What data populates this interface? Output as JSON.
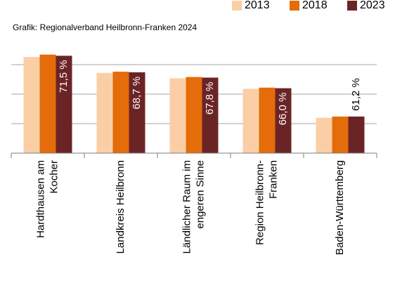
{
  "chart_data": {
    "type": "bar",
    "subtitle": "Grafik: Regionalverband Heilbronn-Franken 2024",
    "categories": [
      [
        "Hardthausen am",
        "Kocher"
      ],
      [
        "Landkreis Heilbronn"
      ],
      [
        "Ländlicher Raum im",
        "engeren Sinne"
      ],
      [
        "Region Heilbronn-",
        "Franken"
      ],
      [
        "Baden-Württemberg"
      ]
    ],
    "series": [
      {
        "name": "2013",
        "color": "#fbcfa6",
        "values": [
          71.3,
          68.6,
          67.7,
          65.9,
          61.0
        ]
      },
      {
        "name": "2018",
        "color": "#e46c0a",
        "values": [
          71.7,
          68.8,
          67.9,
          66.1,
          61.2
        ]
      },
      {
        "name": "2023",
        "color": "#6b2426",
        "values": [
          71.5,
          68.7,
          67.8,
          66.0,
          61.2
        ],
        "value_labels": [
          "71,5 %",
          "68,7 %",
          "67,8 %",
          "66,0 %",
          "61,2 %"
        ]
      }
    ],
    "ylim": [
      55,
      75
    ],
    "yticks": [
      60,
      65,
      70
    ],
    "grid": true,
    "legend": "top-right"
  }
}
